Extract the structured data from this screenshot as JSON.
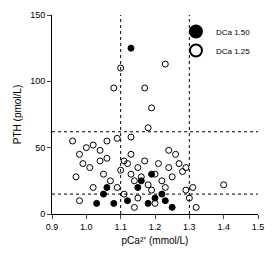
{
  "chart_data": {
    "type": "scatter",
    "x_label": "pCa²⁺ (mmol/L)",
    "y_label": "PTH (pmol/L)",
    "xlim": [
      0.9,
      1.5
    ],
    "ylim": [
      0,
      150
    ],
    "xticks": [
      {
        "value": 0.9,
        "label": "0.9"
      },
      {
        "value": 1.0,
        "label": "1.0"
      },
      {
        "value": 1.1,
        "label": "1.1"
      },
      {
        "value": 1.2,
        "label": "1.2"
      },
      {
        "value": 1.3,
        "label": "1.3"
      },
      {
        "value": 1.4,
        "label": "1.4"
      },
      {
        "value": 1.5,
        "label": "1.5"
      }
    ],
    "yticks": [
      0,
      50,
      100,
      150
    ],
    "grid": false,
    "legend": "top right",
    "reference_lines": {
      "x": [
        1.1,
        1.3
      ],
      "y": [
        15,
        62
      ]
    },
    "series": [
      {
        "name": "DCa 1.50",
        "color": "#000000",
        "marker": "circle",
        "x": [
          1.13,
          1.05,
          1.03,
          1.08,
          1.06,
          1.16,
          1.18,
          1.2,
          1.22,
          1.23,
          1.25,
          1.15,
          1.12,
          1.19
        ],
        "values": [
          125,
          15,
          8,
          8,
          20,
          25,
          8,
          12,
          15,
          10,
          5,
          20,
          10,
          30
        ]
      },
      {
        "name": "DCa 1.25",
        "color": "#000000",
        "marker": "circle-open",
        "x": [
          1.1,
          1.17,
          1.19,
          1.23,
          1.08,
          1.09,
          1.18,
          1.13,
          0.96,
          0.98,
          1.0,
          1.02,
          1.04,
          0.97,
          0.99,
          1.01,
          0.98,
          1.04,
          1.06,
          1.05,
          1.07,
          1.09,
          1.1,
          1.11,
          1.12,
          1.13,
          1.14,
          1.15,
          1.16,
          1.17,
          1.18,
          1.19,
          1.2,
          1.21,
          1.22,
          1.23,
          1.24,
          1.25,
          1.26,
          1.27,
          1.28,
          1.29,
          1.3,
          1.31,
          1.32,
          1.4,
          1.11,
          1.15,
          1.2,
          1.13,
          1.24,
          1.29,
          1.06,
          1.02,
          1.14
        ],
        "values": [
          110,
          95,
          80,
          113,
          95,
          57,
          65,
          58,
          55,
          45,
          50,
          52,
          48,
          28,
          38,
          35,
          10,
          40,
          42,
          30,
          25,
          20,
          33,
          40,
          38,
          30,
          25,
          35,
          28,
          40,
          22,
          18,
          30,
          38,
          25,
          20,
          35,
          28,
          45,
          38,
          32,
          18,
          12,
          20,
          5,
          22,
          15,
          12,
          8,
          45,
          48,
          35,
          55,
          20,
          5
        ]
      }
    ]
  }
}
